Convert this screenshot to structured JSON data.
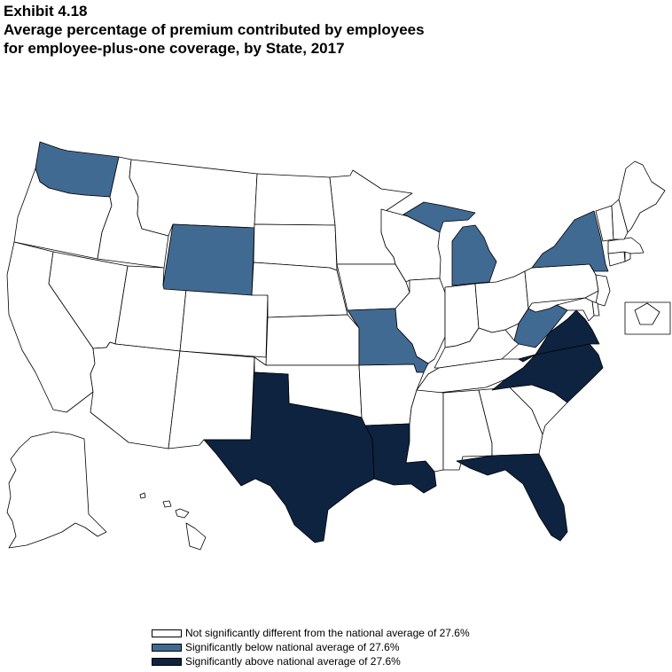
{
  "title": {
    "line1": "Exhibit 4.18",
    "line2": "Average percentage of premium contributed by employees",
    "line3": "for employee-plus-one coverage, by State, 2017"
  },
  "colors": {
    "not_significant": "#ffffff",
    "below": "#416a93",
    "above": "#0d2340",
    "border": "#000000"
  },
  "legend": [
    {
      "key": "not_significant",
      "label": "Not significantly different from the national average of 27.6%"
    },
    {
      "key": "below",
      "label": "Significantly below national average of 27.6%"
    },
    {
      "key": "above",
      "label": "Significantly above national average of 27.6%"
    }
  ],
  "states_below": [
    "WA",
    "WY",
    "MI",
    "NY",
    "MO",
    "WV"
  ],
  "states_above": [
    "TX",
    "LA",
    "FL",
    "VA",
    "NC"
  ]
}
